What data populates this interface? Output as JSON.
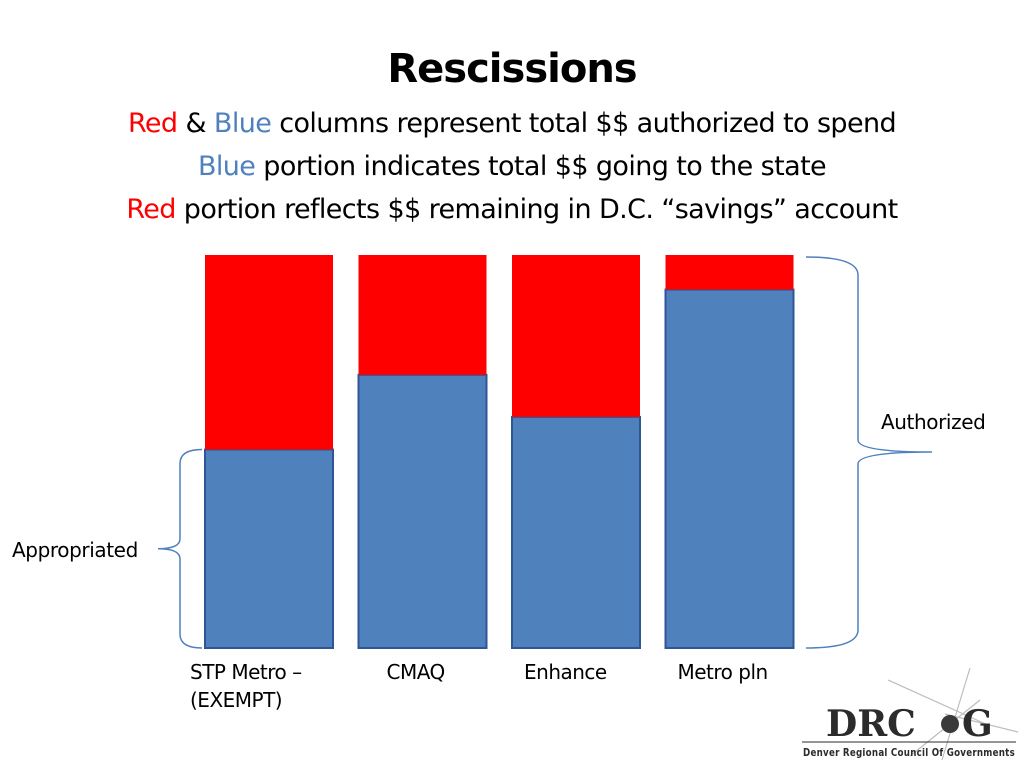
{
  "slide": {
    "title": "Rescissions",
    "line1": {
      "red_word": "Red",
      "amp": " & ",
      "blue_word": "Blue",
      "rest": " columns represent total $$ authorized to spend"
    },
    "line2": {
      "blue_word": "Blue",
      "rest": " portion indicates total $$ going to the state"
    },
    "line3": {
      "red_word": "Red",
      "rest": " portion reflects $$ remaining in D.C.  “savings” account"
    }
  },
  "chart_data": {
    "type": "bar",
    "stacked": true,
    "categories": [
      "STP Metro –\n(EXEMPT)",
      "CMAQ",
      "Enhance",
      "Metro pln"
    ],
    "series": [
      {
        "values": [
          50.5,
          69.5,
          58.8,
          91.2
        ],
        "color": "#4f81bd"
      },
      {
        "values": [
          49.5,
          30.5,
          41.2,
          8.8
        ],
        "color": "#ff0000"
      }
    ],
    "ylim": [
      0,
      100
    ],
    "grid": false,
    "annotations": [
      {
        "text": "Appropriated",
        "spans": "first category, blue portion"
      },
      {
        "text": "Authorized",
        "spans": "last category, full column"
      }
    ]
  },
  "logo": {
    "letters_left": "DRC",
    "letter_right": "G",
    "tagline": "Denver Regional Council Of Governments"
  }
}
